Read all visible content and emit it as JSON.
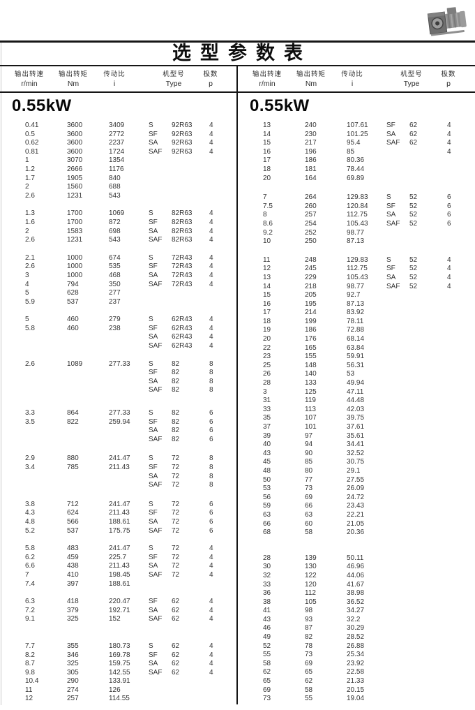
{
  "page": {
    "title": "选型参数表"
  },
  "colors": {
    "background": "#ffffff",
    "line": "#161616",
    "text": "#303030"
  },
  "icons": {
    "motor_photo": "gear-motor-photo"
  },
  "header": {
    "columns": [
      {
        "label": "输出转速",
        "unit": "r/min"
      },
      {
        "label": "输出转矩",
        "unit": "Nm"
      },
      {
        "label": "传动比",
        "unit": "i"
      },
      {
        "label": "机型号",
        "unit": "Type"
      },
      {
        "label": "极数",
        "unit": "p"
      }
    ]
  },
  "tables": [
    {
      "power": "0.55kW",
      "blocks": [
        {
          "rows": [
            [
              "0.41",
              "3600",
              "3409",
              "S",
              "92R63",
              "4"
            ],
            [
              "0.5",
              "3600",
              "2772",
              "SF",
              "92R63",
              "4"
            ],
            [
              "0.62",
              "3600",
              "2237",
              "SA",
              "92R63",
              "4"
            ],
            [
              "0.81",
              "3600",
              "1724",
              "SAF",
              "92R63",
              "4"
            ],
            [
              "1",
              "3070",
              "1354",
              "",
              "",
              ""
            ],
            [
              "1.2",
              "2666",
              "1176",
              "",
              "",
              ""
            ],
            [
              "1.7",
              "1905",
              "840",
              "",
              "",
              ""
            ],
            [
              "2",
              "1560",
              "688",
              "",
              "",
              ""
            ],
            [
              "2.6",
              "1231",
              "543",
              "",
              "",
              ""
            ]
          ]
        },
        {
          "rows": [
            [
              "1.3",
              "1700",
              "1069",
              "S",
              "82R63",
              "4"
            ],
            [
              "1.6",
              "1700",
              "872",
              "SF",
              "82R63",
              "4"
            ],
            [
              "2",
              "1583",
              "698",
              "SA",
              "82R63",
              "4"
            ],
            [
              "2.6",
              "1231",
              "543",
              "SAF",
              "82R63",
              "4"
            ]
          ]
        },
        {
          "rows": [
            [
              "2.1",
              "1000",
              "674",
              "S",
              "72R43",
              "4"
            ],
            [
              "2.6",
              "1000",
              "535",
              "SF",
              "72R43",
              "4"
            ],
            [
              "3",
              "1000",
              "468",
              "SA",
              "72R43",
              "4"
            ],
            [
              "4",
              "794",
              "350",
              "SAF",
              "72R43",
              "4"
            ],
            [
              "5",
              "628",
              "277",
              "",
              "",
              ""
            ],
            [
              "5.9",
              "537",
              "237",
              "",
              "",
              ""
            ]
          ]
        },
        {
          "rows": [
            [
              "5",
              "460",
              "279",
              "S",
              "62R43",
              "4"
            ],
            [
              "5.8",
              "460",
              "238",
              "SF",
              "62R43",
              "4"
            ],
            [
              "",
              "",
              "",
              "SA",
              "62R43",
              "4"
            ],
            [
              "",
              "",
              "",
              "SAF",
              "62R43",
              "4"
            ]
          ]
        },
        {
          "rows": [
            [
              "2.6",
              "1089",
              "277.33",
              "S",
              "82",
              "8"
            ],
            [
              "",
              "",
              "",
              "SF",
              "82",
              "8"
            ],
            [
              "",
              "",
              "",
              "SA",
              "82",
              "8"
            ],
            [
              "",
              "",
              "",
              "SAF",
              "82",
              "8"
            ]
          ]
        },
        {
          "rows": [
            [
              "3.3",
              "864",
              "277.33",
              "S",
              "82",
              "6"
            ],
            [
              "3.5",
              "822",
              "259.94",
              "SF",
              "82",
              "6"
            ],
            [
              "",
              "",
              "",
              "SA",
              "82",
              "6"
            ],
            [
              "",
              "",
              "",
              "SAF",
              "82",
              "6"
            ]
          ]
        },
        {
          "rows": [
            [
              "2.9",
              "880",
              "241.47",
              "S",
              "72",
              "8"
            ],
            [
              "3.4",
              "785",
              "211.43",
              "SF",
              "72",
              "8"
            ],
            [
              "",
              "",
              "",
              "SA",
              "72",
              "8"
            ],
            [
              "",
              "",
              "",
              "SAF",
              "72",
              "8"
            ]
          ]
        },
        {
          "rows": [
            [
              "3.8",
              "712",
              "241.47",
              "S",
              "72",
              "6"
            ],
            [
              "4.3",
              "624",
              "211.43",
              "SF",
              "72",
              "6"
            ],
            [
              "4.8",
              "566",
              "188.61",
              "SA",
              "72",
              "6"
            ],
            [
              "5.2",
              "537",
              "175.75",
              "SAF",
              "72",
              "6"
            ]
          ]
        },
        {
          "rows": [
            [
              "5.8",
              "483",
              "241.47",
              "S",
              "72",
              "4"
            ],
            [
              "6.2",
              "459",
              "225.7",
              "SF",
              "72",
              "4"
            ],
            [
              "6.6",
              "438",
              "211.43",
              "SA",
              "72",
              "4"
            ],
            [
              "7",
              "410",
              "198.45",
              "SAF",
              "72",
              "4"
            ],
            [
              "7.4",
              "397",
              "188.61",
              "",
              "",
              ""
            ]
          ]
        },
        {
          "rows": [
            [
              "6.3",
              "418",
              "220.47",
              "SF",
              "62",
              "4"
            ],
            [
              "7.2",
              "379",
              "192.71",
              "SA",
              "62",
              "4"
            ],
            [
              "9.1",
              "325",
              "152",
              "SAF",
              "62",
              "4"
            ]
          ]
        },
        {
          "rows": [
            [
              "7.7",
              "355",
              "180.73",
              "S",
              "62",
              "4"
            ],
            [
              "8.2",
              "346",
              "169.78",
              "SF",
              "62",
              "4"
            ],
            [
              "8.7",
              "325",
              "159.75",
              "SA",
              "62",
              "4"
            ],
            [
              "9.8",
              "305",
              "142.55",
              "SAF",
              "62",
              "4"
            ],
            [
              "10.4",
              "290",
              "133.91",
              "",
              "",
              ""
            ],
            [
              "11",
              "274",
              "126",
              "",
              "",
              ""
            ],
            [
              "12",
              "257",
              "114.55",
              "",
              "",
              ""
            ]
          ]
        }
      ]
    },
    {
      "power": "0.55kW",
      "blocks": [
        {
          "rows": [
            [
              "13",
              "240",
              "107.61",
              "SF",
              "62",
              "4"
            ],
            [
              "14",
              "230",
              "101.25",
              "SA",
              "62",
              "4"
            ],
            [
              "15",
              "217",
              "95.4",
              "SAF",
              "62",
              "4"
            ],
            [
              "16",
              "196",
              "85",
              "",
              "",
              "4"
            ],
            [
              "17",
              "186",
              "80.36",
              "",
              "",
              ""
            ],
            [
              "18",
              "181",
              "78.44",
              "",
              "",
              ""
            ],
            [
              "20",
              "164",
              "69.89",
              "",
              "",
              ""
            ]
          ]
        },
        {
          "rows": [
            [
              "7",
              "264",
              "129.83",
              "S",
              "52",
              "6"
            ],
            [
              "7.5",
              "260",
              "120.84",
              "SF",
              "52",
              "6"
            ],
            [
              "8",
              "257",
              "112.75",
              "SA",
              "52",
              "6"
            ],
            [
              "8.6",
              "254",
              "105.43",
              "SAF",
              "52",
              "6"
            ],
            [
              "9.2",
              "252",
              "98.77",
              "",
              "",
              ""
            ],
            [
              "10",
              "250",
              "87.13",
              "",
              "",
              ""
            ]
          ]
        },
        {
          "rows": [
            [
              "11",
              "248",
              "129.83",
              "S",
              "52",
              "4"
            ],
            [
              "12",
              "245",
              "112.75",
              "SF",
              "52",
              "4"
            ],
            [
              "13",
              "229",
              "105.43",
              "SA",
              "52",
              "4"
            ],
            [
              "14",
              "218",
              "98.77",
              "SAF",
              "52",
              "4"
            ],
            [
              "15",
              "205",
              "92.7",
              "",
              "",
              ""
            ],
            [
              "16",
              "195",
              "87.13",
              "",
              "",
              ""
            ],
            [
              "17",
              "214",
              "83.92",
              "",
              "",
              ""
            ],
            [
              "18",
              "199",
              "78.11",
              "",
              "",
              ""
            ],
            [
              "19",
              "186",
              "72.88",
              "",
              "",
              ""
            ],
            [
              "20",
              "176",
              "68.14",
              "",
              "",
              ""
            ],
            [
              "22",
              "165",
              "63.84",
              "",
              "",
              ""
            ],
            [
              "23",
              "155",
              "59.91",
              "",
              "",
              ""
            ],
            [
              "25",
              "148",
              "56.31",
              "",
              "",
              ""
            ],
            [
              "26",
              "140",
              "53",
              "",
              "",
              ""
            ],
            [
              "28",
              "133",
              "49.94",
              "",
              "",
              ""
            ],
            [
              "3",
              "125",
              "47.11",
              "",
              "",
              ""
            ],
            [
              "31",
              "119",
              "44.48",
              "",
              "",
              ""
            ],
            [
              "33",
              "113",
              "42.03",
              "",
              "",
              ""
            ],
            [
              "35",
              "107",
              "39.75",
              "",
              "",
              ""
            ],
            [
              "37",
              "101",
              "37.61",
              "",
              "",
              ""
            ],
            [
              "39",
              "97",
              "35.61",
              "",
              "",
              ""
            ],
            [
              "40",
              "94",
              "34.41",
              "",
              "",
              ""
            ],
            [
              "43",
              "90",
              "32.52",
              "",
              "",
              ""
            ],
            [
              "45",
              "85",
              "30.75",
              "",
              "",
              ""
            ],
            [
              "48",
              "80",
              "29.1",
              "",
              "",
              ""
            ],
            [
              "50",
              "77",
              "27.55",
              "",
              "",
              ""
            ],
            [
              "53",
              "73",
              "26.09",
              "",
              "",
              ""
            ],
            [
              "56",
              "69",
              "24.72",
              "",
              "",
              ""
            ],
            [
              "59",
              "66",
              "23.43",
              "",
              "",
              ""
            ],
            [
              "63",
              "63",
              "22.21",
              "",
              "",
              ""
            ],
            [
              "66",
              "60",
              "21.05",
              "",
              "",
              ""
            ],
            [
              "68",
              "58",
              "20.36",
              "",
              "",
              ""
            ]
          ]
        },
        {
          "rows": [
            [
              "28",
              "139",
              "50.11",
              "",
              "",
              ""
            ],
            [
              "30",
              "130",
              "46.96",
              "",
              "",
              ""
            ],
            [
              "32",
              "122",
              "44.06",
              "",
              "",
              ""
            ],
            [
              "33",
              "120",
              "41.67",
              "",
              "",
              ""
            ],
            [
              "36",
              "112",
              "38.98",
              "",
              "",
              ""
            ],
            [
              "38",
              "105",
              "36.52",
              "",
              "",
              ""
            ],
            [
              "41",
              "98",
              "34.27",
              "",
              "",
              ""
            ],
            [
              "43",
              "93",
              "32.2",
              "",
              "",
              ""
            ],
            [
              "46",
              "87",
              "30.29",
              "",
              "",
              ""
            ],
            [
              "49",
              "82",
              "28.52",
              "",
              "",
              ""
            ],
            [
              "52",
              "78",
              "26.88",
              "",
              "",
              ""
            ],
            [
              "55",
              "73",
              "25.34",
              "",
              "",
              ""
            ],
            [
              "58",
              "69",
              "23.92",
              "",
              "",
              ""
            ],
            [
              "62",
              "65",
              "22.58",
              "",
              "",
              ""
            ],
            [
              "65",
              "62",
              "21.33",
              "",
              "",
              ""
            ],
            [
              "69",
              "58",
              "20.15",
              "",
              "",
              ""
            ],
            [
              "73",
              "55",
              "19.04",
              "",
              "",
              ""
            ]
          ]
        }
      ]
    }
  ]
}
